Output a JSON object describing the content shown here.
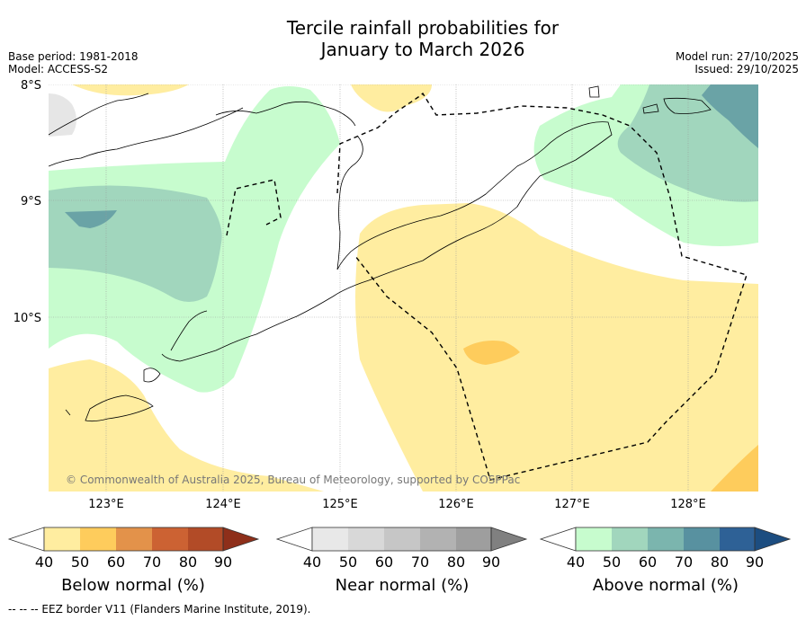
{
  "title_line1": "Tercile rainfall probabilities for",
  "title_line2": "January to March 2026",
  "meta": {
    "base_period": "Base period: 1981-2018",
    "model": "Model: ACCESS-S2",
    "model_run": "Model run: 27/10/2025",
    "issued": "Issued: 29/10/2025"
  },
  "latitude_labels": [
    "8°S",
    "9°S",
    "10°S"
  ],
  "longitude_labels": [
    "123°E",
    "124°E",
    "125°E",
    "126°E",
    "127°E",
    "128°E"
  ],
  "copyright": "© Commonwealth of Australia 2025, Bureau of Meteorology, supported by COSPPac",
  "colorbars": [
    {
      "label": "Below normal (%)",
      "ticks": [
        "40",
        "50",
        "60",
        "70",
        "80",
        "90"
      ],
      "colors": [
        "#ffffff",
        "#ffeda0",
        "#fecc5c",
        "#e3924a",
        "#cc6233",
        "#b24b27",
        "#8e2f1a"
      ]
    },
    {
      "label": "Near normal (%)",
      "ticks": [
        "40",
        "50",
        "60",
        "70",
        "80",
        "90"
      ],
      "colors": [
        "#ffffff",
        "#e8e8e8",
        "#d8d8d8",
        "#c6c6c6",
        "#b2b2b2",
        "#9e9e9e",
        "#808080"
      ]
    },
    {
      "label": "Above normal (%)",
      "ticks": [
        "40",
        "50",
        "60",
        "70",
        "80",
        "90"
      ],
      "colors": [
        "#ffffff",
        "#c7fcce",
        "#a1d6bd",
        "#7bb5ae",
        "#5891a0",
        "#2e6196",
        "#1c4d80"
      ]
    }
  ],
  "footnote": "--  --  -- EEZ border V11 (Flanders Marine Institute, 2019).",
  "map_colors": {
    "below_50": "#ffeda0",
    "below_60": "#fecc5c",
    "above_50": "#c7fcce",
    "above_60": "#a1d6bd",
    "above_70": "#6aa3a6",
    "near_50": "#e6e6e6"
  }
}
